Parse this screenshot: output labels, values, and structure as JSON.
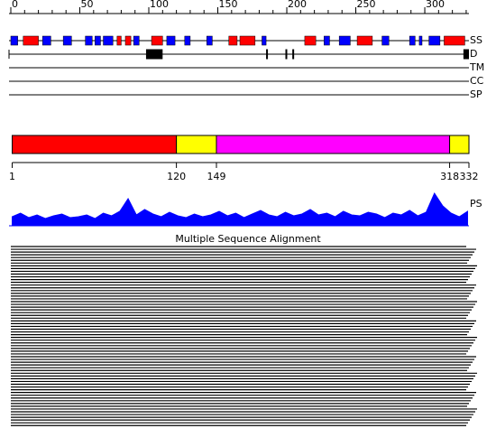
{
  "ruler": {
    "xlim": [
      0,
      332
    ],
    "ticks": [
      0,
      50,
      100,
      150,
      200,
      250,
      300
    ]
  },
  "tracks": [
    {
      "label": "SS",
      "segments": [
        {
          "start": 0,
          "end": 5,
          "color": "#0000ff"
        },
        {
          "start": 9,
          "end": 20,
          "color": "#ff0000"
        },
        {
          "start": 23,
          "end": 29,
          "color": "#0000ff"
        },
        {
          "start": 38,
          "end": 44,
          "color": "#0000ff"
        },
        {
          "start": 54,
          "end": 59,
          "color": "#0000ff"
        },
        {
          "start": 61,
          "end": 65,
          "color": "#0000ff"
        },
        {
          "start": 67,
          "end": 74,
          "color": "#0000ff"
        },
        {
          "start": 77,
          "end": 80,
          "color": "#ff0000"
        },
        {
          "start": 83,
          "end": 87,
          "color": "#ff0000"
        },
        {
          "start": 89,
          "end": 93,
          "color": "#0000ff"
        },
        {
          "start": 102,
          "end": 110,
          "color": "#ff0000"
        },
        {
          "start": 113,
          "end": 119,
          "color": "#0000ff"
        },
        {
          "start": 126,
          "end": 130,
          "color": "#0000ff"
        },
        {
          "start": 142,
          "end": 146,
          "color": "#0000ff"
        },
        {
          "start": 158,
          "end": 164,
          "color": "#ff0000"
        },
        {
          "start": 166,
          "end": 177,
          "color": "#ff0000"
        },
        {
          "start": 182,
          "end": 185,
          "color": "#0000ff"
        },
        {
          "start": 213,
          "end": 221,
          "color": "#ff0000"
        },
        {
          "start": 227,
          "end": 231,
          "color": "#0000ff"
        },
        {
          "start": 238,
          "end": 246,
          "color": "#0000ff"
        },
        {
          "start": 251,
          "end": 262,
          "color": "#ff0000"
        },
        {
          "start": 269,
          "end": 274,
          "color": "#0000ff"
        },
        {
          "start": 289,
          "end": 293,
          "color": "#0000ff"
        },
        {
          "start": 296,
          "end": 298,
          "color": "#0000ff"
        },
        {
          "start": 303,
          "end": 311,
          "color": "#0000ff"
        },
        {
          "start": 314,
          "end": 329,
          "color": "#ff0000"
        }
      ]
    },
    {
      "label": "D",
      "segments": [
        {
          "start": 98,
          "end": 110,
          "color": "#000000"
        },
        {
          "start": 185,
          "end": 186,
          "color": "#000000"
        },
        {
          "start": 199,
          "end": 200,
          "color": "#000000"
        },
        {
          "start": 204,
          "end": 205,
          "color": "#000000"
        },
        {
          "start": 328,
          "end": 332,
          "color": "#000000"
        }
      ]
    },
    {
      "label": "TM",
      "segments": []
    },
    {
      "label": "CC",
      "segments": []
    },
    {
      "label": "SP",
      "segments": []
    }
  ],
  "domains": {
    "segments": [
      {
        "start": 1,
        "end": 120,
        "color": "#ff0000"
      },
      {
        "start": 120,
        "end": 149,
        "color": "#ffff00"
      },
      {
        "start": 149,
        "end": 318,
        "color": "#ff00ff"
      },
      {
        "start": 318,
        "end": 332,
        "color": "#ffff00"
      }
    ],
    "ticks": [
      1,
      120,
      149,
      318,
      332
    ]
  },
  "ps": {
    "label": "PS",
    "color": "#0000ff",
    "ylim": [
      0,
      40
    ],
    "x": [
      1,
      7,
      13,
      19,
      25,
      31,
      37,
      43,
      49,
      55,
      61,
      67,
      73,
      79,
      85,
      91,
      97,
      103,
      109,
      115,
      121,
      127,
      133,
      139,
      145,
      151,
      157,
      163,
      169,
      175,
      181,
      187,
      193,
      199,
      205,
      211,
      217,
      223,
      229,
      235,
      241,
      247,
      253,
      259,
      265,
      271,
      277,
      283,
      289,
      295,
      301,
      307,
      313,
      319,
      325,
      331
    ],
    "values": [
      10,
      14,
      9,
      12,
      8,
      11,
      13,
      9,
      10,
      12,
      8,
      14,
      11,
      16,
      30,
      12,
      18,
      13,
      10,
      15,
      11,
      9,
      13,
      10,
      12,
      16,
      11,
      14,
      9,
      13,
      17,
      12,
      10,
      15,
      11,
      13,
      18,
      12,
      14,
      10,
      16,
      12,
      11,
      15,
      13,
      9,
      14,
      12,
      17,
      11,
      15,
      36,
      22,
      14,
      10,
      16
    ]
  },
  "msa": {
    "title": "Multiple Sequence Alignment"
  }
}
